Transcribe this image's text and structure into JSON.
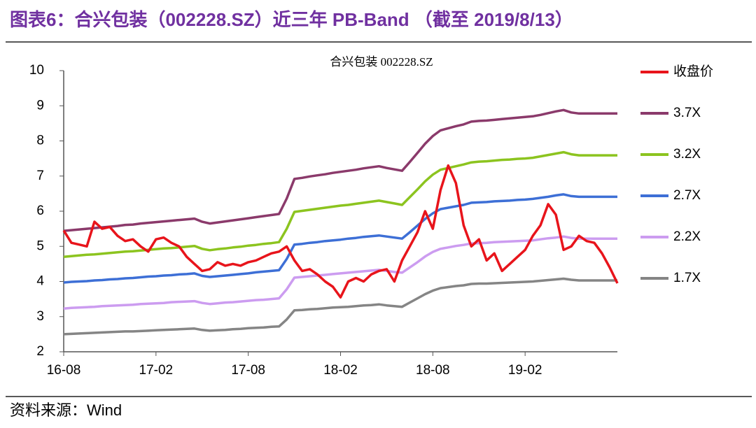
{
  "header": {
    "title": "图表6：合兴包装（002228.SZ）近三年 PB-Band （截至 2019/8/13）"
  },
  "chart_data": {
    "type": "line",
    "title": "合兴包装 002228.SZ",
    "categories": [
      "16-08",
      null,
      null,
      null,
      null,
      null,
      null,
      null,
      null,
      null,
      null,
      null,
      "17-02",
      null,
      null,
      null,
      null,
      null,
      null,
      null,
      null,
      null,
      null,
      null,
      "17-08",
      null,
      null,
      null,
      null,
      null,
      null,
      null,
      null,
      null,
      null,
      null,
      "18-02",
      null,
      null,
      null,
      null,
      null,
      null,
      null,
      null,
      null,
      null,
      null,
      "18-08",
      null,
      null,
      null,
      null,
      null,
      null,
      null,
      null,
      null,
      null,
      null,
      "19-02",
      null,
      null,
      null,
      null,
      null,
      null,
      null,
      null,
      null,
      null,
      null,
      null
    ],
    "ylim": [
      2,
      10
    ],
    "yticks": [
      2,
      3,
      4,
      5,
      6,
      7,
      8,
      9,
      10
    ],
    "grid": false,
    "legend": "right",
    "series": [
      {
        "name": "收盘价",
        "color": "#e8141b",
        "values": [
          5.45,
          5.1,
          5.05,
          5.0,
          5.7,
          5.5,
          5.55,
          5.3,
          5.15,
          5.2,
          5.0,
          4.85,
          5.2,
          5.25,
          5.1,
          5.0,
          4.7,
          4.5,
          4.3,
          4.35,
          4.55,
          4.45,
          4.5,
          4.45,
          4.55,
          4.6,
          4.7,
          4.8,
          4.85,
          5.0,
          4.6,
          4.3,
          4.35,
          4.2,
          4.0,
          3.85,
          3.55,
          4.0,
          4.1,
          4.0,
          4.2,
          4.3,
          4.35,
          4.0,
          4.6,
          5.0,
          5.4,
          6.0,
          5.5,
          6.6,
          7.3,
          6.8,
          5.6,
          5.0,
          5.2,
          4.6,
          4.8,
          4.3,
          4.5,
          4.7,
          4.9,
          5.3,
          5.6,
          6.2,
          5.9,
          4.9,
          5.0,
          5.3,
          5.15,
          5.1,
          4.8,
          4.4,
          3.95
        ]
      },
      {
        "name": "3.7X",
        "color": "#8b3a6b",
        "values": [
          5.44,
          5.46,
          5.48,
          5.5,
          5.52,
          5.54,
          5.56,
          5.58,
          5.61,
          5.62,
          5.65,
          5.67,
          5.69,
          5.71,
          5.73,
          5.75,
          5.77,
          5.79,
          5.7,
          5.65,
          5.68,
          5.71,
          5.74,
          5.77,
          5.8,
          5.83,
          5.86,
          5.89,
          5.92,
          6.36,
          6.92,
          6.95,
          6.99,
          7.02,
          7.05,
          7.09,
          7.12,
          7.15,
          7.18,
          7.22,
          7.25,
          7.28,
          7.23,
          7.19,
          7.15,
          7.4,
          7.66,
          7.92,
          8.14,
          8.3,
          8.36,
          8.42,
          8.47,
          8.55,
          8.57,
          8.58,
          8.6,
          8.62,
          8.64,
          8.66,
          8.68,
          8.7,
          8.74,
          8.79,
          8.84,
          8.88,
          8.81,
          8.78,
          8.78,
          8.78,
          8.78,
          8.78,
          8.78
        ]
      },
      {
        "name": "3.2X",
        "color": "#8cc41f",
        "values": [
          4.7,
          4.72,
          4.74,
          4.76,
          4.77,
          4.79,
          4.81,
          4.83,
          4.85,
          4.86,
          4.88,
          4.9,
          4.92,
          4.94,
          4.95,
          4.97,
          4.99,
          5.01,
          4.93,
          4.89,
          4.92,
          4.94,
          4.97,
          4.99,
          5.02,
          5.04,
          5.07,
          5.09,
          5.12,
          5.5,
          5.98,
          6.01,
          6.04,
          6.07,
          6.1,
          6.13,
          6.16,
          6.18,
          6.21,
          6.24,
          6.27,
          6.3,
          6.26,
          6.22,
          6.18,
          6.4,
          6.62,
          6.85,
          7.04,
          7.18,
          7.23,
          7.28,
          7.33,
          7.39,
          7.41,
          7.42,
          7.44,
          7.46,
          7.47,
          7.49,
          7.5,
          7.52,
          7.56,
          7.6,
          7.64,
          7.68,
          7.62,
          7.59,
          7.59,
          7.59,
          7.59,
          7.59,
          7.59
        ]
      },
      {
        "name": "2.7X",
        "color": "#3d6fd6",
        "values": [
          3.97,
          3.99,
          4.0,
          4.01,
          4.03,
          4.04,
          4.06,
          4.07,
          4.09,
          4.1,
          4.12,
          4.14,
          4.15,
          4.17,
          4.18,
          4.2,
          4.21,
          4.23,
          4.16,
          4.13,
          4.15,
          4.17,
          4.19,
          4.21,
          4.23,
          4.26,
          4.28,
          4.3,
          4.32,
          4.64,
          5.05,
          5.07,
          5.1,
          5.12,
          5.15,
          5.17,
          5.19,
          5.22,
          5.24,
          5.27,
          5.29,
          5.31,
          5.28,
          5.25,
          5.22,
          5.4,
          5.59,
          5.78,
          5.94,
          6.06,
          6.1,
          6.14,
          6.18,
          6.24,
          6.25,
          6.26,
          6.28,
          6.29,
          6.3,
          6.32,
          6.33,
          6.35,
          6.38,
          6.41,
          6.45,
          6.48,
          6.43,
          6.41,
          6.41,
          6.41,
          6.41,
          6.41,
          6.41
        ]
      },
      {
        "name": "2.2X",
        "color": "#cc9cf0",
        "values": [
          3.23,
          3.25,
          3.26,
          3.27,
          3.28,
          3.3,
          3.31,
          3.32,
          3.33,
          3.34,
          3.36,
          3.37,
          3.38,
          3.39,
          3.41,
          3.42,
          3.43,
          3.44,
          3.39,
          3.36,
          3.38,
          3.4,
          3.41,
          3.43,
          3.45,
          3.47,
          3.48,
          3.5,
          3.52,
          3.78,
          4.11,
          4.13,
          4.15,
          4.17,
          4.19,
          4.21,
          4.23,
          4.25,
          4.27,
          4.29,
          4.31,
          4.33,
          4.3,
          4.27,
          4.25,
          4.4,
          4.55,
          4.71,
          4.84,
          4.93,
          4.97,
          5.01,
          5.04,
          5.08,
          5.09,
          5.1,
          5.12,
          5.13,
          5.14,
          5.15,
          5.16,
          5.17,
          5.2,
          5.23,
          5.25,
          5.28,
          5.24,
          5.22,
          5.22,
          5.22,
          5.22,
          5.22,
          5.22
        ]
      },
      {
        "name": "1.7X",
        "color": "#858585",
        "values": [
          2.5,
          2.51,
          2.52,
          2.53,
          2.54,
          2.55,
          2.56,
          2.57,
          2.58,
          2.58,
          2.59,
          2.6,
          2.61,
          2.62,
          2.63,
          2.64,
          2.65,
          2.66,
          2.62,
          2.6,
          2.61,
          2.62,
          2.64,
          2.65,
          2.67,
          2.68,
          2.69,
          2.71,
          2.72,
          2.92,
          3.18,
          3.19,
          3.21,
          3.22,
          3.24,
          3.26,
          3.27,
          3.28,
          3.3,
          3.32,
          3.33,
          3.35,
          3.32,
          3.3,
          3.28,
          3.4,
          3.52,
          3.64,
          3.74,
          3.81,
          3.84,
          3.87,
          3.89,
          3.93,
          3.94,
          3.94,
          3.95,
          3.96,
          3.97,
          3.98,
          3.99,
          4.0,
          4.02,
          4.04,
          4.06,
          4.08,
          4.05,
          4.03,
          4.03,
          4.03,
          4.03,
          4.03,
          4.03
        ]
      }
    ]
  },
  "footer": {
    "source": "资料来源：Wind"
  }
}
